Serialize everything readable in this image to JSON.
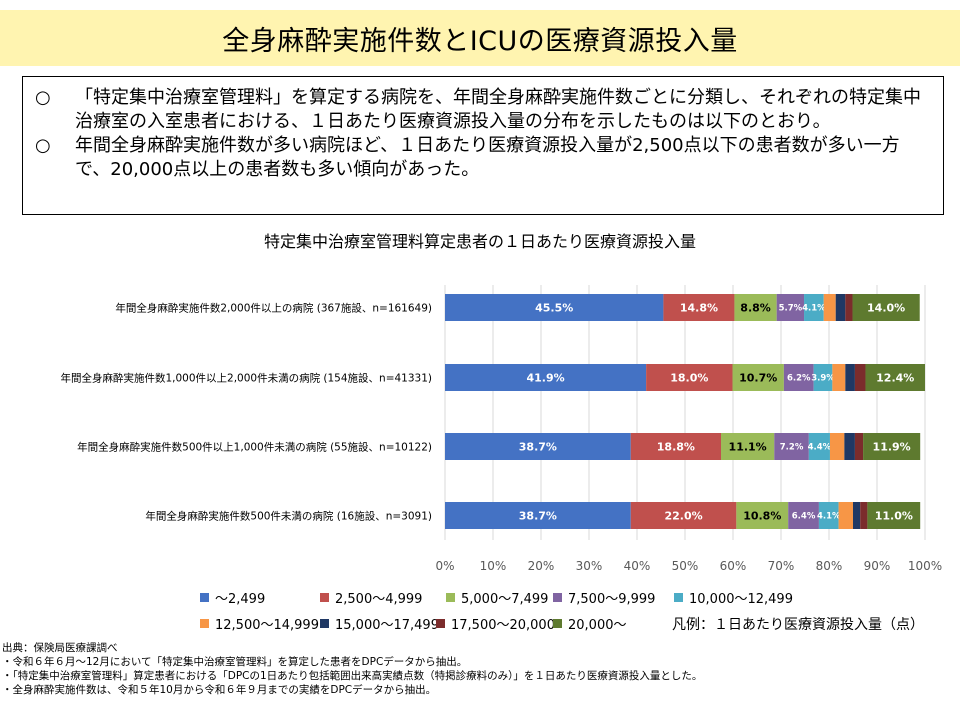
{
  "header": {
    "title": "全身麻酔実施件数とICUの医療資源投入量"
  },
  "summary": [
    {
      "mark": "○",
      "text": "「特定集中治療室管理料」を算定する病院を、年間全身麻酔実施件数ごとに分類し、それぞれの特定集中治療室の入室患者における、１日あたり医療資源投入量の分布を示したものは以下のとおり。"
    },
    {
      "mark": "○",
      "text": "年間全身麻酔実施件数が多い病院ほど、１日あたり医療資源投入量が2,500点以下の患者数が多い一方で、20,000点以上の患者数も多い傾向があった。"
    }
  ],
  "legend_caption": "凡例：１日あたり医療資源投入量（点）",
  "source": {
    "heading": "出典：保険局医療課調べ",
    "notes": [
      "・令和６年６月～12月において「特定集中治療室管理料」を算定した患者をDPCデータから抽出。",
      "・「特定集中治療室管理料」算定患者における「DPCの1日あたり包括範囲出来高実績点数（特掲診療料のみ）」を１日あたり医療資源投入量とした。",
      "・全身麻酔実施件数は、令和５年10月から令和６年９月までの実績をDPCデータから抽出。"
    ]
  },
  "chart_data": {
    "type": "bar",
    "orientation": "horizontal",
    "stacked": true,
    "percent_stacked": true,
    "title": "特定集中治療室管理料算定患者の１日あたり医療資源投入量",
    "xlim": [
      0,
      100
    ],
    "x_ticks": [
      "0%",
      "10%",
      "20%",
      "30%",
      "40%",
      "50%",
      "60%",
      "70%",
      "80%",
      "90%",
      "100%"
    ],
    "grid": true,
    "legend_position": "bottom",
    "categories": [
      "年間全身麻酔実施件数2,000件以上の病院 (367施設、n=161649)",
      "年間全身麻酔実施件数1,000件以上2,000件未満の病院 (154施設、n=41331)",
      "年間全身麻酔実施件数500件以上1,000件未満の病院 (55施設、n=10122)",
      "年間全身麻酔実施件数500件未満の病院 (16施設、n=3091)"
    ],
    "series": [
      {
        "name": "～2,499",
        "color": "#4472c4",
        "values": [
          45.5,
          41.9,
          38.7,
          38.7
        ],
        "labels": [
          "45.5%",
          "41.9%",
          "38.7%",
          "38.7%"
        ]
      },
      {
        "name": "2,500～4,999",
        "color": "#c0504d",
        "values": [
          14.8,
          18.0,
          18.8,
          22.0
        ],
        "labels": [
          "14.8%",
          "18.0%",
          "18.8%",
          "22.0%"
        ]
      },
      {
        "name": "5,000～7,499",
        "color": "#9bbb59",
        "values": [
          8.8,
          10.7,
          11.1,
          10.8
        ],
        "labels": [
          "8.8%",
          "10.7%",
          "11.1%",
          "10.8%"
        ]
      },
      {
        "name": "7,500～9,999",
        "color": "#8064a2",
        "values": [
          5.7,
          6.2,
          7.2,
          6.4
        ],
        "labels": [
          "5.7%",
          "6.2%",
          "7.2%",
          "6.4%"
        ]
      },
      {
        "name": "10,000～12,499",
        "color": "#4bacc6",
        "values": [
          4.1,
          3.9,
          4.4,
          4.1
        ],
        "labels": [
          "4.1%",
          "3.9%",
          "4.4%",
          "4.1%"
        ]
      },
      {
        "name": "12,500～14,999",
        "color": "#f79646",
        "values": [
          2.5,
          2.7,
          3.0,
          3.0
        ],
        "labels": [
          "",
          "",
          "",
          ""
        ]
      },
      {
        "name": "15,000～17,499",
        "color": "#1f3864",
        "values": [
          2.0,
          2.0,
          2.2,
          1.5
        ],
        "labels": [
          "",
          "",
          "",
          ""
        ]
      },
      {
        "name": "17,500～20,000",
        "color": "#7b2c2c",
        "values": [
          1.5,
          2.2,
          1.7,
          1.5
        ],
        "labels": [
          "",
          "",
          "",
          ""
        ]
      },
      {
        "name": "20,000～",
        "color": "#5e7a2f",
        "values": [
          14.0,
          12.4,
          11.9,
          11.0
        ],
        "labels": [
          "14.0%",
          "12.4%",
          "11.9%",
          "11.0%"
        ]
      }
    ]
  }
}
